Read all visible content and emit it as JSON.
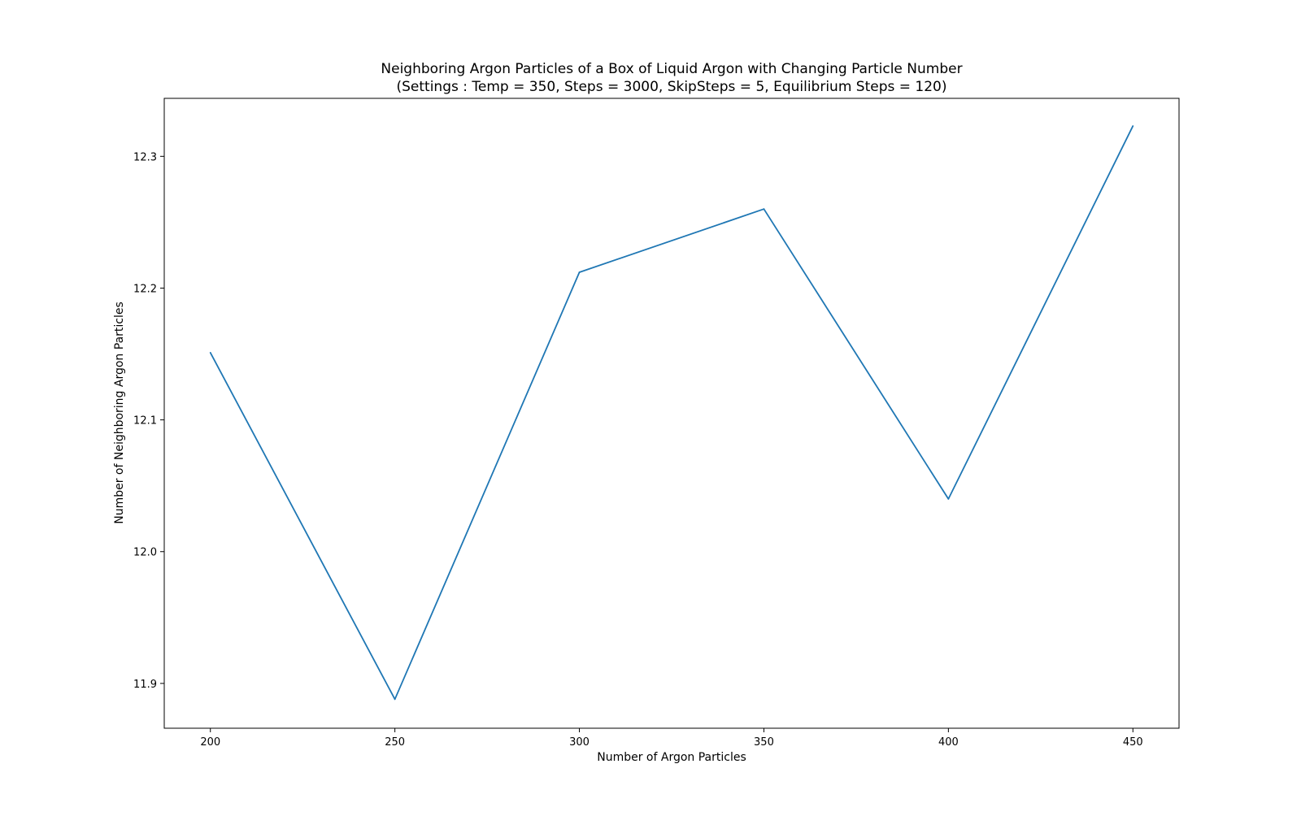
{
  "chart_data": {
    "type": "line",
    "title": "Neighboring Argon Particles of a Box of Liquid Argon with Changing Particle Number",
    "subtitle": "(Settings : Temp = 350, Steps = 3000, SkipSteps = 5, Equilibrium Steps = 120)",
    "xlabel": "Number of Argon Particles",
    "ylabel": "Number of Neighboring Argon Particles",
    "x": [
      200,
      250,
      300,
      350,
      400,
      450
    ],
    "series": [
      {
        "values": [
          12.151,
          11.888,
          12.212,
          12.26,
          12.04,
          12.323
        ],
        "color": "#1f77b4"
      }
    ],
    "xlim": [
      187.5,
      462.5
    ],
    "ylim": [
      11.866,
      12.344
    ],
    "xticks": [
      200,
      250,
      300,
      350,
      400,
      450
    ],
    "xtick_labels": [
      "200",
      "250",
      "300",
      "350",
      "400",
      "450"
    ],
    "yticks": [
      11.9,
      12.0,
      12.1,
      12.2,
      12.3
    ],
    "ytick_labels": [
      "11.9",
      "12.0",
      "12.1",
      "12.2",
      "12.3"
    ],
    "grid": false,
    "legend": false
  }
}
